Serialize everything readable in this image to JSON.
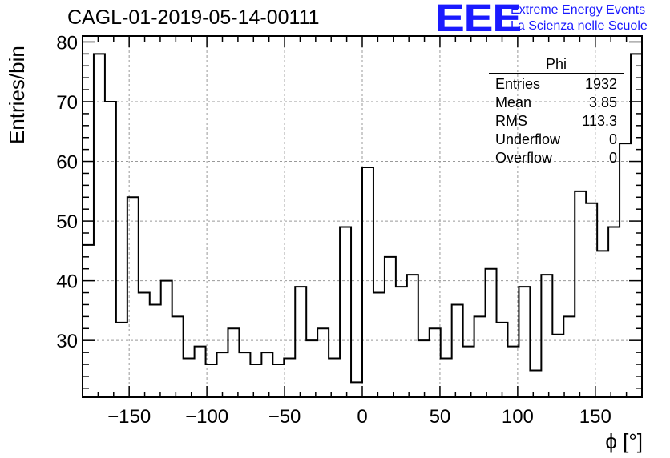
{
  "header": {
    "title": "CAGL-01-2019-05-14-00111"
  },
  "logo": {
    "mark": "EEE",
    "line1": "Extreme Energy Events",
    "line2": "La Scienza nelle Scuole"
  },
  "stats_box": {
    "title": "Phi",
    "rows": [
      {
        "label": "Entries",
        "value": "1932"
      },
      {
        "label": "Mean",
        "value": "3.85"
      },
      {
        "label": "RMS",
        "value": "113.3"
      },
      {
        "label": "Underflow",
        "value": "0"
      },
      {
        "label": "Overflow",
        "value": "0"
      }
    ]
  },
  "chart_data": {
    "type": "histogram",
    "title": "CAGL-01-2019-05-14-00111",
    "xlabel": "ϕ [°]",
    "ylabel": "Entries/bin",
    "xlim": [
      -180,
      180
    ],
    "ylim": [
      20.5,
      81
    ],
    "grid": true,
    "bin_width": 7.2,
    "x_ticks": [
      -150,
      -100,
      -50,
      0,
      50,
      100,
      150
    ],
    "x_tick_labels": [
      "−150",
      "−100",
      "−50",
      "0",
      "50",
      "100",
      "150"
    ],
    "y_ticks": [
      30,
      40,
      50,
      60,
      70,
      80
    ],
    "y_tick_labels": [
      "30",
      "40",
      "50",
      "60",
      "70",
      "80"
    ],
    "values": [
      46,
      78,
      70,
      33,
      54,
      38,
      36,
      40,
      34,
      27,
      29,
      26,
      28,
      32,
      28,
      26,
      28,
      26,
      27,
      39,
      30,
      32,
      27,
      49,
      23,
      59,
      38,
      44,
      39,
      41,
      30,
      32,
      27,
      36,
      29,
      34,
      42,
      33,
      29,
      39,
      25,
      41,
      31,
      34,
      55,
      53,
      45,
      49,
      63,
      78
    ]
  }
}
